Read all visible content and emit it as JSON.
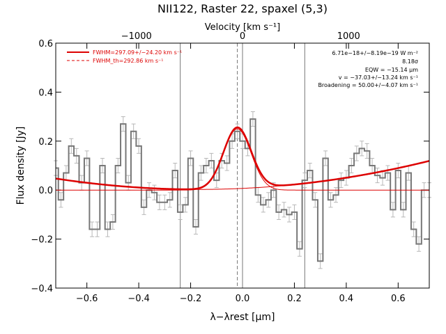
{
  "chart_data": {
    "type": "line",
    "title": "NII122, Raster 22, spaxel (5,3)",
    "xlabel": "λ−λrest [μm]",
    "ylabel": "Flux density [Jy]",
    "top_axis_label": "Velocity [km s⁻¹]",
    "xlim": [
      -0.72,
      0.72
    ],
    "ylim": [
      -0.4,
      0.6
    ],
    "x_ticks": [
      "−0.6",
      "−0.4",
      "−0.2",
      "0.0",
      "0.2",
      "0.4",
      "0.6"
    ],
    "x_tick_values": [
      -0.6,
      -0.4,
      -0.2,
      0.0,
      0.2,
      0.4,
      0.6
    ],
    "y_ticks": [
      "−0.4",
      "−0.2",
      "0.0",
      "0.2",
      "0.4",
      "0.6"
    ],
    "y_tick_values": [
      -0.4,
      -0.2,
      0.0,
      0.2,
      0.4,
      0.6
    ],
    "top_ticks": [
      "−1000",
      "0",
      "1000"
    ],
    "top_tick_values": [
      -1000,
      0,
      1000
    ],
    "vertical_lines": [
      -0.24,
      -0.02,
      0.0,
      0.24
    ],
    "legend": [
      {
        "label": "FWHM=297.09+/−24.20 km s⁻¹",
        "color": "#dd0000",
        "style": "solid"
      },
      {
        "label": "FWHM_th=292.86 km s⁻¹",
        "color": "#dd0000",
        "style": "dashed"
      }
    ],
    "annotations": [
      "6.71e−18+/−8.19e−19 W m⁻²",
      "8.18σ",
      "EQW = −15.14 μm",
      "v = −37.03+/−13.24 km s⁻¹",
      "Broadening = 50.00+/−4.07 km s⁻¹"
    ],
    "gaussian": {
      "amplitude": 0.25,
      "center": -0.02,
      "sigma": 0.053
    },
    "continuum": {
      "a": 0.007,
      "b": 0.05,
      "c": 0.147
    },
    "series": [
      {
        "x": [
          -0.72,
          -0.7,
          -0.68,
          -0.66,
          -0.64,
          -0.62,
          -0.6,
          -0.58,
          -0.56,
          -0.54,
          -0.52,
          -0.5,
          -0.48,
          -0.46,
          -0.44,
          -0.42,
          -0.4,
          -0.38,
          -0.36,
          -0.34,
          -0.32,
          -0.3,
          -0.28,
          -0.26,
          -0.24,
          -0.22,
          -0.2,
          -0.18,
          -0.16,
          -0.14,
          -0.12,
          -0.1,
          -0.08,
          -0.06,
          -0.04,
          -0.02,
          0.0,
          0.02,
          0.04,
          0.06,
          0.08,
          0.1,
          0.12,
          0.14,
          0.16,
          0.18,
          0.2,
          0.22,
          0.24,
          0.26,
          0.28,
          0.3,
          0.32,
          0.34,
          0.36,
          0.38,
          0.4,
          0.42,
          0.44,
          0.46,
          0.48,
          0.5,
          0.52,
          0.54,
          0.56,
          0.58,
          0.6,
          0.62,
          0.64,
          0.66,
          0.68,
          0.7,
          0.72
        ],
        "y": [
          0.09,
          -0.04,
          0.07,
          0.18,
          0.14,
          0.03,
          0.13,
          -0.16,
          -0.16,
          0.1,
          -0.16,
          -0.13,
          0.1,
          0.27,
          0.03,
          0.24,
          0.18,
          -0.07,
          0.0,
          -0.01,
          -0.05,
          -0.05,
          -0.04,
          0.08,
          -0.09,
          -0.06,
          0.13,
          -0.15,
          0.07,
          0.1,
          0.12,
          0.04,
          0.12,
          0.11,
          0.2,
          0.24,
          0.2,
          0.17,
          0.29,
          -0.02,
          -0.06,
          -0.04,
          0.0,
          -0.09,
          -0.08,
          -0.1,
          -0.09,
          -0.24,
          0.04,
          0.08,
          -0.04,
          -0.29,
          0.13,
          -0.04,
          -0.02,
          0.04,
          0.05,
          0.1,
          0.15,
          0.17,
          0.16,
          0.1,
          0.06,
          0.05,
          0.07,
          -0.08,
          0.08,
          -0.08,
          0.07,
          -0.16,
          -0.22,
          0.0,
          0.0
        ],
        "errors": [
          0.03,
          0.03,
          0.03,
          0.03,
          0.03,
          0.03,
          0.03,
          0.03,
          0.03,
          0.03,
          0.03,
          0.03,
          0.03,
          0.03,
          0.03,
          0.03,
          0.03,
          0.03,
          0.03,
          0.03,
          0.03,
          0.03,
          0.03,
          0.03,
          0.03,
          0.03,
          0.03,
          0.03,
          0.03,
          0.03,
          0.03,
          0.03,
          0.03,
          0.03,
          0.03,
          0.03,
          0.03,
          0.03,
          0.03,
          0.03,
          0.03,
          0.03,
          0.03,
          0.03,
          0.03,
          0.03,
          0.03,
          0.03,
          0.03,
          0.03,
          0.03,
          0.03,
          0.03,
          0.03,
          0.03,
          0.03,
          0.03,
          0.03,
          0.03,
          0.03,
          0.03,
          0.03,
          0.03,
          0.03,
          0.03,
          0.03,
          0.03,
          0.03,
          0.03,
          0.03,
          0.03,
          0.03,
          0.03
        ]
      }
    ]
  }
}
